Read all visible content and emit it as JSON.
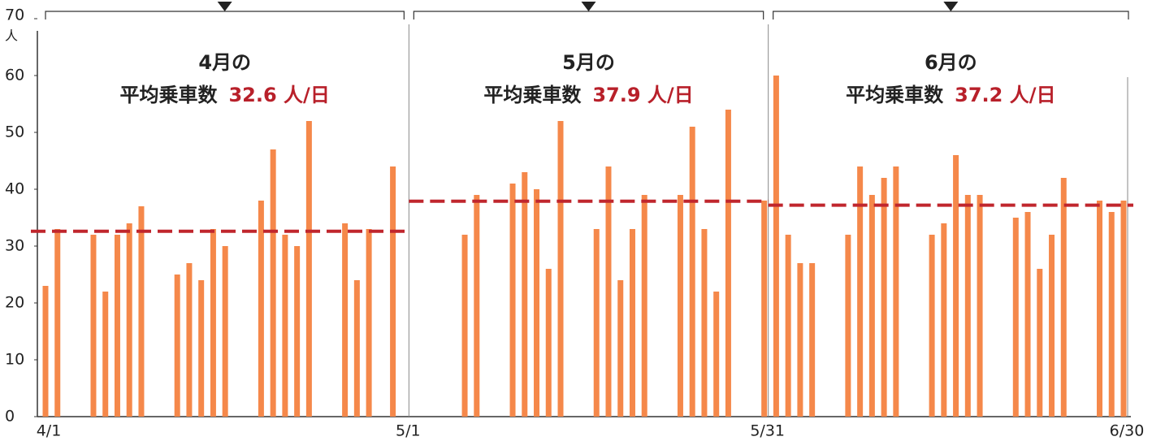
{
  "chart_data": {
    "type": "bar",
    "y_unit": "人",
    "categories": [
      "4/1",
      null,
      null,
      null,
      null,
      null,
      null,
      null,
      null,
      null,
      null,
      null,
      null,
      null,
      null,
      null,
      null,
      null,
      null,
      null,
      null,
      null,
      null,
      null,
      null,
      null,
      null,
      null,
      null,
      null,
      "5/1",
      null,
      null,
      null,
      null,
      null,
      null,
      null,
      null,
      null,
      null,
      null,
      null,
      null,
      null,
      null,
      null,
      null,
      null,
      null,
      null,
      null,
      null,
      null,
      null,
      null,
      null,
      null,
      null,
      null,
      "5/31",
      null,
      null,
      null,
      null,
      null,
      null,
      null,
      null,
      null,
      null,
      null,
      null,
      null,
      null,
      null,
      null,
      null,
      null,
      null,
      null,
      null,
      null,
      null,
      null,
      null,
      null,
      null,
      null,
      null,
      "6/30"
    ],
    "values": [
      23,
      33,
      null,
      null,
      32,
      22,
      32,
      34,
      37,
      null,
      null,
      25,
      27,
      24,
      33,
      30,
      null,
      null,
      38,
      47,
      32,
      30,
      52,
      null,
      null,
      34,
      24,
      33,
      null,
      44,
      null,
      null,
      null,
      null,
      null,
      32,
      39,
      null,
      null,
      41,
      43,
      40,
      26,
      52,
      null,
      null,
      33,
      44,
      24,
      33,
      39,
      null,
      null,
      39,
      51,
      33,
      22,
      54,
      null,
      null,
      38,
      60,
      32,
      27,
      27,
      null,
      null,
      32,
      44,
      39,
      42,
      44,
      null,
      null,
      32,
      34,
      46,
      39,
      39,
      null,
      null,
      35,
      36,
      26,
      32,
      42,
      null,
      null,
      38,
      36,
      38
    ],
    "color": "#f5884a",
    "ylim": [
      0,
      70
    ],
    "yticks": [
      0,
      10,
      20,
      30,
      40,
      50,
      60,
      70
    ],
    "averages": [
      {
        "heading": "4月の",
        "label": "平均乗車数",
        "value": 32.6,
        "value_label": "32.6 人/日"
      },
      {
        "heading": "5月の",
        "label": "平均乗車数",
        "value": 37.9,
        "value_label": "37.9 人/日"
      },
      {
        "heading": "6月の",
        "label": "平均乗車数",
        "value": 37.2,
        "value_label": "37.2 人/日"
      }
    ],
    "average_color": "#c0262d"
  }
}
